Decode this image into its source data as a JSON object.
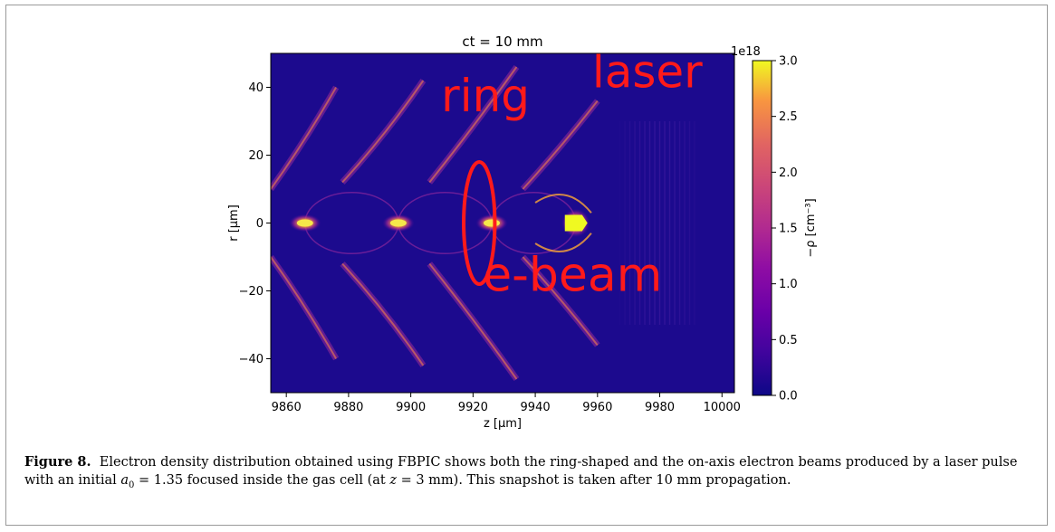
{
  "figure": {
    "label": "Figure 8.",
    "caption_pre": "Electron density distribution obtained using FBPIC shows both the ring-shaped and the on-axis electron beams produced by a laser pulse with an initial ",
    "caption_a0": "a",
    "caption_a0_sub": "0",
    "caption_mid": " = 1.35 focused inside the gas cell (at ",
    "caption_z": "z",
    "caption_post": " = 3 mm). This snapshot is taken after 10 mm propagation."
  },
  "chart_data": {
    "type": "heatmap",
    "title": "ct = 10 mm",
    "xlabel": "z [µm]",
    "ylabel": "r [µm]",
    "xlim": [
      9855,
      10004
    ],
    "ylim": [
      -50,
      50
    ],
    "xticks": [
      9860,
      9880,
      9900,
      9920,
      9940,
      9960,
      9980,
      10000
    ],
    "yticks": [
      -40,
      -20,
      0,
      20,
      40
    ],
    "ytick_labels": [
      "−40",
      "−20",
      "0",
      "20",
      "40"
    ],
    "colorbar": {
      "label": "−ρ [cm⁻³]",
      "offset": "1e18",
      "range": [
        0,
        3.0
      ],
      "ticks": [
        "0.0",
        "0.5",
        "1.0",
        "1.5",
        "2.0",
        "2.5",
        "3.0"
      ],
      "colormap": "plasma"
    },
    "annotations": [
      {
        "text": "ring",
        "z": 9924,
        "r": 33
      },
      {
        "text": "laser",
        "z": 9976,
        "r": 40
      },
      {
        "text": "e-beam",
        "z": 9952,
        "r": -20
      }
    ],
    "ring_ellipse": {
      "z": 9922,
      "r": 0,
      "dz": 5,
      "dr": 18
    },
    "bunches": [
      {
        "z": 9866,
        "r": 0
      },
      {
        "z": 9896,
        "r": 0
      },
      {
        "z": 9926,
        "r": 0
      },
      {
        "z": 9953,
        "r": 0
      }
    ]
  }
}
